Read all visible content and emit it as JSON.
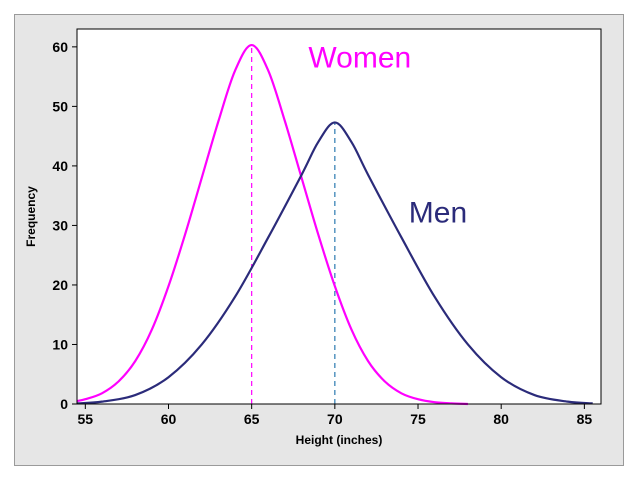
{
  "chart_data": {
    "type": "line",
    "title": "",
    "xlabel": "Height (inches)",
    "ylabel": "Frequency",
    "xlim": [
      54.5,
      86
    ],
    "ylim": [
      0,
      63
    ],
    "xticks": [
      55,
      60,
      65,
      70,
      75,
      80,
      85
    ],
    "yticks": [
      0,
      10,
      20,
      30,
      40,
      50,
      60
    ],
    "grid": false,
    "legend": "none",
    "series": [
      {
        "name": "Women",
        "color": "#ff00ff",
        "mean": 65,
        "peak": 60.3,
        "x": [
          54.5,
          55,
          56,
          57,
          58,
          59,
          60,
          61,
          62,
          63,
          64,
          65,
          66,
          67,
          68,
          69,
          70,
          71,
          72,
          73,
          74,
          75,
          76,
          77,
          78
        ],
        "y": [
          0.5,
          0.8,
          1.8,
          3.8,
          7.2,
          12.5,
          19.8,
          28.5,
          38.0,
          47.5,
          56.0,
          60.3,
          56.0,
          47.5,
          38.0,
          28.5,
          19.8,
          12.5,
          7.2,
          3.8,
          1.8,
          0.8,
          0.3,
          0.1,
          0.0
        ]
      },
      {
        "name": "Men",
        "color": "#2b2b7a",
        "mean": 70,
        "peak": 47.3,
        "x": [
          54.5,
          56,
          58,
          60,
          62,
          64,
          66,
          68,
          69,
          70,
          71,
          72,
          74,
          76,
          78,
          80,
          82,
          84,
          85.5
        ],
        "y": [
          0.1,
          0.4,
          1.5,
          4.5,
          10.0,
          18.0,
          28.0,
          38.5,
          44.0,
          47.3,
          44.0,
          38.5,
          28.0,
          18.0,
          10.0,
          4.5,
          1.5,
          0.4,
          0.1
        ]
      }
    ],
    "annotations": [
      {
        "text": "Women",
        "color": "#ff00ff",
        "x": 71.5,
        "y": 56.5
      },
      {
        "text": "Men",
        "color": "#2b2b7a",
        "x": 76.2,
        "y": 30.5
      }
    ],
    "reference_lines": [
      {
        "x": 65,
        "ymax": 60.3,
        "color": "#ff00ff",
        "style": "dashed"
      },
      {
        "x": 70,
        "ymax": 47.3,
        "color": "#2b7ab0",
        "style": "dashed"
      }
    ]
  }
}
